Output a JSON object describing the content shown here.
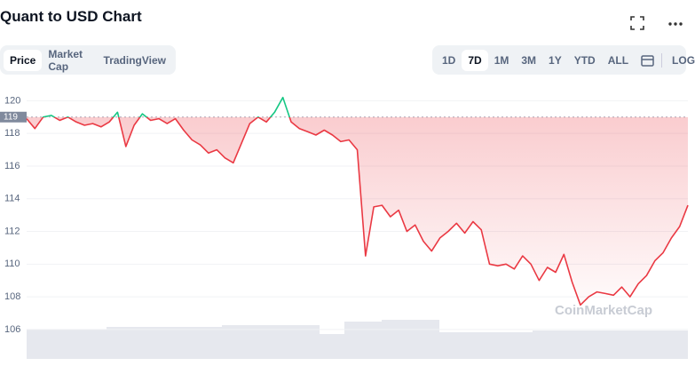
{
  "header": {
    "title": "Quant to USD Chart"
  },
  "tabs": [
    "Price",
    "Market Cap",
    "TradingView"
  ],
  "ranges": [
    "1D",
    "7D",
    "1M",
    "3M",
    "1Y",
    "YTD",
    "ALL"
  ],
  "scale_toggle": "LOG",
  "watermark": "CoinMarketCap",
  "chart_data": {
    "type": "line",
    "values": [
      118.9,
      118.3,
      119.0,
      119.1,
      118.8,
      119.0,
      118.7,
      118.5,
      118.6,
      118.4,
      118.7,
      119.3,
      117.2,
      118.5,
      119.2,
      118.8,
      118.9,
      118.6,
      118.9,
      118.2,
      117.6,
      117.3,
      116.8,
      117.0,
      116.5,
      116.2,
      117.4,
      118.6,
      119.0,
      118.7,
      119.3,
      120.2,
      118.7,
      118.3,
      118.1,
      117.9,
      118.2,
      117.9,
      117.5,
      117.6,
      117.0,
      110.5,
      113.5,
      113.6,
      112.9,
      113.3,
      112.0,
      112.4,
      111.4,
      110.8,
      111.6,
      112.0,
      112.5,
      111.9,
      112.6,
      112.1,
      110.0,
      109.9,
      110.0,
      109.7,
      110.5,
      110.0,
      109.0,
      109.8,
      109.5,
      110.6,
      108.9,
      107.5,
      108.0,
      108.3,
      108.2,
      108.1,
      108.6,
      108.0,
      108.8,
      109.3,
      110.2,
      110.7,
      111.6,
      112.3,
      113.6
    ],
    "reference": 119,
    "up_color": "#16c784",
    "down_color": "#ea3943",
    "ylim": [
      104.2,
      121
    ],
    "yticks": [
      106,
      108,
      110,
      112,
      114,
      116,
      118,
      120
    ],
    "grid": true
  }
}
